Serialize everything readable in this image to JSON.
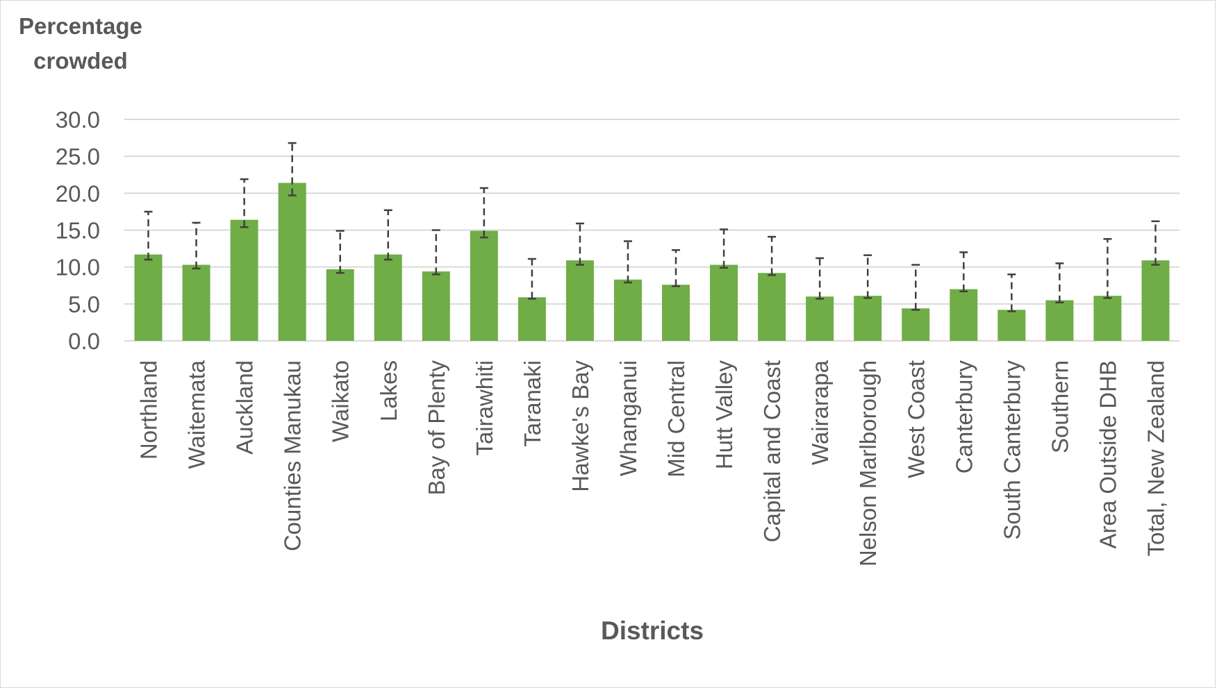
{
  "chart_data": {
    "type": "bar",
    "title": "",
    "ylabel_lines": [
      "Percentage",
      "crowded"
    ],
    "xlabel": "Districts",
    "ylim": [
      0,
      30
    ],
    "yticks": [
      "0.0",
      "5.0",
      "10.0",
      "15.0",
      "20.0",
      "25.0",
      "30.0"
    ],
    "grid": true,
    "bar_color": "#70ad47",
    "error_bar_style": "dashed",
    "categories": [
      "Northland",
      "Waitemata",
      "Auckland",
      "Counties Manukau",
      "Waikato",
      "Lakes",
      "Bay of Plenty",
      "Tairawhiti",
      "Taranaki",
      "Hawke's Bay",
      "Whanganui",
      "Mid Central",
      "Hutt Valley",
      "Capital and Coast",
      "Wairarapa",
      "Nelson Marlborough",
      "West Coast",
      "Canterbury",
      "South Canterbury",
      "Southern",
      "Area Outside DHB",
      "Total, New Zealand"
    ],
    "values": [
      11.7,
      10.3,
      16.4,
      21.4,
      9.7,
      11.7,
      9.4,
      14.9,
      5.9,
      10.9,
      8.3,
      7.6,
      10.3,
      9.2,
      6.0,
      6.1,
      4.4,
      7.0,
      4.2,
      5.5,
      6.1,
      10.9
    ],
    "error_low": [
      11.0,
      9.8,
      15.4,
      19.7,
      9.2,
      11.0,
      9.0,
      14.0,
      5.7,
      10.3,
      7.9,
      7.4,
      9.9,
      8.9,
      5.7,
      5.8,
      4.2,
      6.7,
      4.0,
      5.2,
      5.8,
      10.3
    ],
    "error_high": [
      17.5,
      16.0,
      21.9,
      26.8,
      14.9,
      17.7,
      15.0,
      20.7,
      11.1,
      15.9,
      13.5,
      12.3,
      15.1,
      14.1,
      11.2,
      11.6,
      10.3,
      12.0,
      9.0,
      10.5,
      13.8,
      16.2
    ]
  }
}
